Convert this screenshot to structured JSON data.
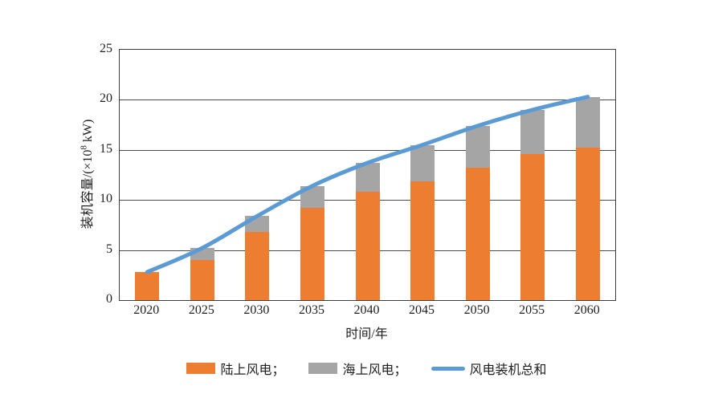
{
  "chart_data": {
    "type": "bar",
    "subtype": "stacked-bars-with-total-line",
    "title": "",
    "categories": [
      "2020",
      "2025",
      "2030",
      "2035",
      "2040",
      "2045",
      "2050",
      "2055",
      "2060"
    ],
    "series": [
      {
        "key": "onshore-wind",
        "name": "陆上风电",
        "type": "bar",
        "stacked": true,
        "color": "#ED7D31",
        "values": [
          2.8,
          4.0,
          6.8,
          9.2,
          10.8,
          11.9,
          13.2,
          14.6,
          15.2
        ]
      },
      {
        "key": "offshore-wind",
        "name": "海上风电",
        "type": "bar",
        "stacked": true,
        "color": "#A5A5A5",
        "values": [
          0,
          1.2,
          1.6,
          2.2,
          2.9,
          3.6,
          4.2,
          4.4,
          5.1
        ]
      },
      {
        "key": "total-wind",
        "name": "风电装机总和",
        "type": "line",
        "color": "#5B9BD5",
        "values": [
          2.8,
          5.2,
          8.4,
          11.4,
          13.7,
          15.5,
          17.4,
          19.0,
          20.3
        ]
      }
    ],
    "xlabel": "时间/年",
    "ylabel": "装机容量/(×10⁸ kW)",
    "ylabel_parts": {
      "prefix": "装机容量/(×10",
      "sup": "8",
      "suffix": " kW)"
    },
    "ylim": [
      0,
      25
    ],
    "yticks": [
      0,
      5,
      10,
      15,
      20,
      25
    ],
    "grid": "horizontal",
    "legend_position": "bottom",
    "legend": [
      {
        "key": "onshore-wind",
        "label": "陆上风电；",
        "swatch": "rect",
        "color": "#ED7D31"
      },
      {
        "key": "offshore-wind",
        "label": "海上风电；",
        "swatch": "rect",
        "color": "#A5A5A5"
      },
      {
        "key": "total-wind",
        "label": "风电装机总和",
        "swatch": "line",
        "color": "#5B9BD5"
      }
    ],
    "colors": {
      "axis": "#3c3c3c",
      "gridline": "#4a4a4a",
      "text": "#1f1f1f",
      "background": "#ffffff"
    }
  }
}
